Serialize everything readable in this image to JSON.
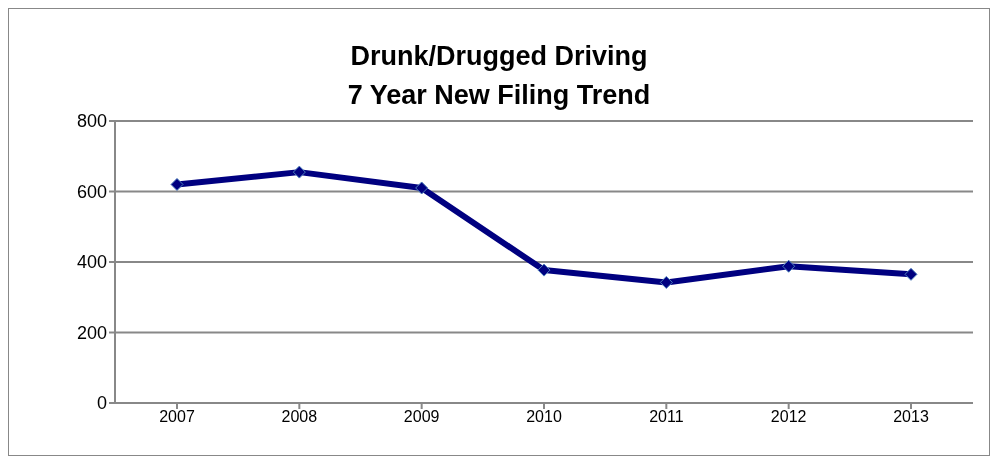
{
  "chart_data": {
    "type": "line",
    "title": "Drunk/Drugged Driving\n7 Year New Filing Trend",
    "categories": [
      "2007",
      "2008",
      "2009",
      "2010",
      "2011",
      "2012",
      "2013"
    ],
    "series": [
      {
        "color": "#000080",
        "values": [
          620,
          655,
          610,
          377,
          342,
          388,
          365
        ]
      }
    ],
    "ylim": [
      0,
      800
    ],
    "yticks": [
      0,
      200,
      400,
      600,
      800
    ],
    "grid": "y",
    "marker": "diamond",
    "line_style": "solid"
  }
}
